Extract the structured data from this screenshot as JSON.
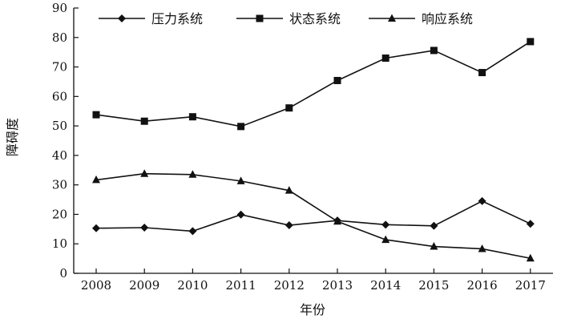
{
  "chart_data": {
    "type": "line",
    "x": [
      2008,
      2009,
      2010,
      2011,
      2012,
      2013,
      2014,
      2015,
      2016,
      2017
    ],
    "series": [
      {
        "name": "压力系统",
        "marker": "diamond",
        "values": [
          15.3,
          15.5,
          14.3,
          19.9,
          16.3,
          17.9,
          16.5,
          16.1,
          24.5,
          16.8
        ]
      },
      {
        "name": "状态系统",
        "marker": "square",
        "values": [
          53.8,
          51.6,
          53.1,
          49.8,
          56.1,
          65.4,
          73.0,
          75.6,
          68.1,
          78.6
        ]
      },
      {
        "name": "响应系统",
        "marker": "triangle",
        "values": [
          31.7,
          33.8,
          33.5,
          31.3,
          28.1,
          17.6,
          11.4,
          9.1,
          8.3,
          5.1
        ]
      }
    ],
    "xlabel": "年份",
    "ylabel": "障碍度",
    "ylim": [
      0,
      90
    ],
    "yticks": [
      0,
      10,
      20,
      30,
      40,
      50,
      60,
      70,
      80,
      90
    ],
    "grid": false,
    "legend_position": "top",
    "line_color": "#111111"
  }
}
